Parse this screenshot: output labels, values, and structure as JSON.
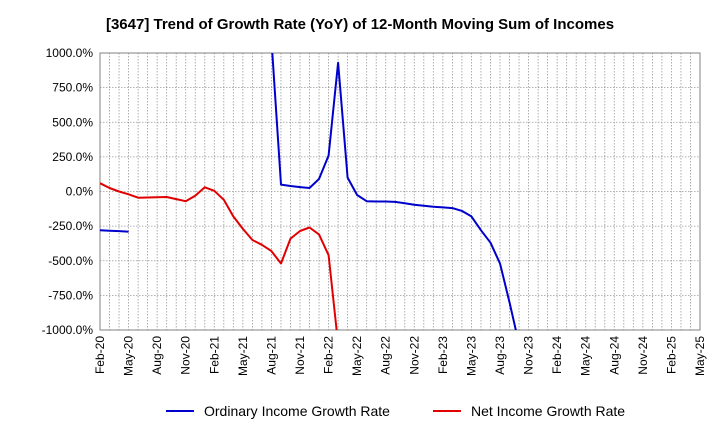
{
  "chart_data": {
    "type": "line",
    "title": "[3647]  Trend of Growth Rate (YoY) of 12-Month Moving Sum of Incomes",
    "xlabel": "",
    "ylabel": "",
    "ylim": [
      -1000,
      1000
    ],
    "yticks": [
      1000,
      750,
      500,
      250,
      0,
      -250,
      -500,
      -750,
      -1000
    ],
    "ytick_labels": [
      "1000.0%",
      "750.0%",
      "500.0%",
      "250.0%",
      "0.0%",
      "-250.0%",
      "-500.0%",
      "-750.0%",
      "-1000.0%"
    ],
    "x_months": [
      "2020-02",
      "2020-03",
      "2020-04",
      "2020-05",
      "2020-06",
      "2020-07",
      "2020-08",
      "2020-09",
      "2020-10",
      "2020-11",
      "2020-12",
      "2021-01",
      "2021-02",
      "2021-03",
      "2021-04",
      "2021-05",
      "2021-06",
      "2021-07",
      "2021-08",
      "2021-09",
      "2021-10",
      "2021-11",
      "2021-12",
      "2022-01",
      "2022-02",
      "2022-03",
      "2022-04",
      "2022-05",
      "2022-06",
      "2022-07",
      "2022-08",
      "2022-09",
      "2022-10",
      "2022-11",
      "2022-12",
      "2023-01",
      "2023-02",
      "2023-03",
      "2023-04",
      "2023-05",
      "2023-06",
      "2023-07",
      "2023-08",
      "2023-09",
      "2023-10",
      "2023-11",
      "2023-12",
      "2024-01",
      "2024-02",
      "2024-03",
      "2024-04",
      "2024-05",
      "2024-06",
      "2024-07",
      "2024-08",
      "2024-09",
      "2024-10",
      "2024-11",
      "2024-12",
      "2025-01",
      "2025-02",
      "2025-03",
      "2025-04",
      "2025-05"
    ],
    "x_tick_labels": [
      "Feb-20",
      "May-20",
      "Aug-20",
      "Nov-20",
      "Feb-21",
      "May-21",
      "Aug-21",
      "Nov-21",
      "Feb-22",
      "May-22",
      "Aug-22",
      "Nov-22",
      "Feb-23",
      "May-23",
      "Aug-23",
      "Nov-23",
      "Feb-24",
      "May-24",
      "Aug-24",
      "Nov-24",
      "Feb-25",
      "May-25"
    ],
    "grid": true,
    "legend_position": "bottom",
    "series": [
      {
        "name": "Ordinary Income Growth Rate",
        "color": "#0000cc",
        "values": [
          -280,
          -283,
          -286,
          -290,
          null,
          null,
          null,
          null,
          null,
          null,
          null,
          null,
          null,
          null,
          null,
          null,
          null,
          null,
          1100,
          50,
          40,
          32,
          25,
          90,
          260,
          930,
          100,
          -25,
          -70,
          -72,
          -72,
          -75,
          -85,
          -95,
          -103,
          -110,
          -115,
          -120,
          -140,
          -180,
          -280,
          -370,
          -520,
          -800,
          -1100,
          null,
          null,
          null,
          null,
          null,
          null,
          null,
          null,
          null,
          null,
          null,
          null,
          null,
          null,
          null,
          null,
          null,
          null,
          null
        ]
      },
      {
        "name": "Net Income Growth Rate",
        "color": "#e00000",
        "values": [
          60,
          25,
          0,
          -20,
          -45,
          -43,
          -42,
          -40,
          -55,
          -70,
          -30,
          30,
          5,
          -60,
          -180,
          -270,
          -350,
          -385,
          -430,
          -520,
          -340,
          -285,
          -260,
          -310,
          -460,
          -1100,
          null,
          null,
          null,
          null,
          null,
          null,
          null,
          null,
          null,
          null,
          null,
          null,
          null,
          null,
          null,
          null,
          null,
          null,
          null,
          null,
          null,
          null,
          null,
          null,
          null,
          null,
          null,
          null,
          null,
          null,
          null,
          null,
          null,
          null,
          null,
          null,
          null,
          null
        ]
      }
    ]
  }
}
